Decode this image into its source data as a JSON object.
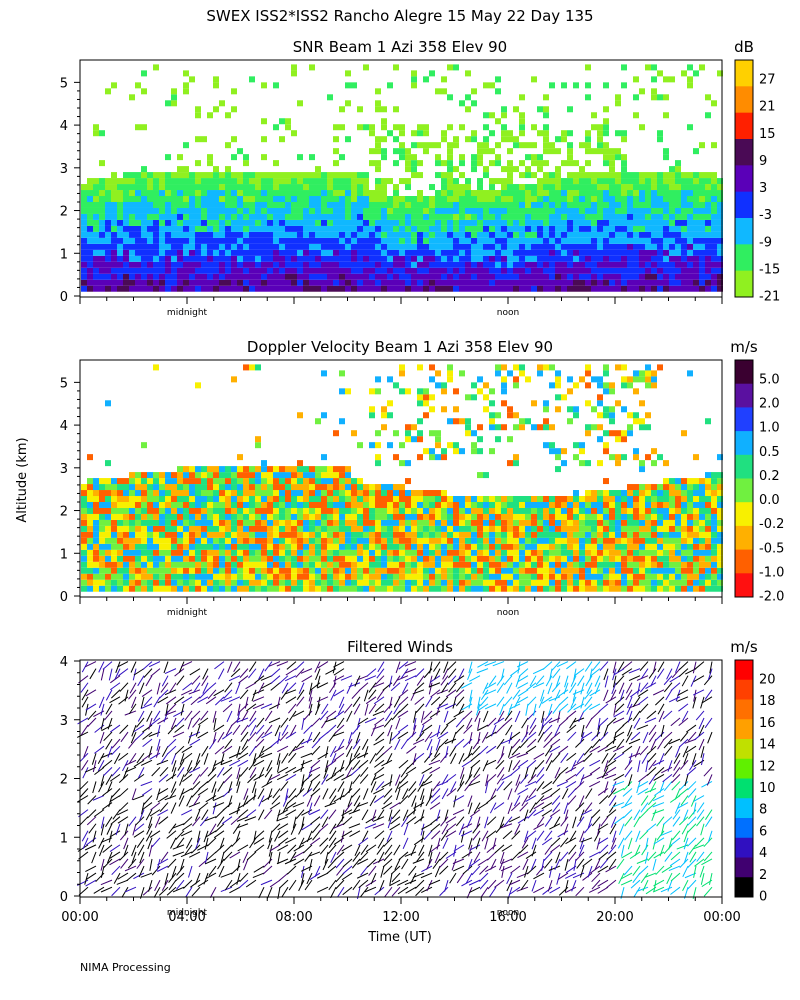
{
  "page": {
    "main_title": "SWEX ISS2*ISS2 Rancho Alegre  15 May 22 Day 135",
    "ylabel": "Altitude (km)",
    "xlabel": "Time (UT)",
    "footer": "NIMA Processing"
  },
  "chart_data": [
    {
      "id": "snr",
      "type": "heatmap",
      "title": "SNR Beam 1 Azi 358 Elev 90",
      "colorbar_unit": "dB",
      "colorbar_ticks": [
        "27",
        "21",
        "15",
        "9",
        "3",
        "-3",
        "-9",
        "-15",
        "-21"
      ],
      "colorbar_colors": [
        "#ffd000",
        "#ff8c00",
        "#ff2000",
        "#4a0a55",
        "#5a00b8",
        "#1030ff",
        "#10b8ff",
        "#30ee60",
        "#90f020"
      ],
      "yticks": [
        "0",
        "1",
        "2",
        "3",
        "4",
        "5"
      ],
      "ylim": [
        0,
        5.5
      ],
      "xlim_hours": [
        0,
        24
      ],
      "x_markers": [
        "midnight",
        "noon"
      ],
      "cell_colors": [
        "#90f020",
        "#30ee60",
        "#10b8ff",
        "#1030ff",
        "#5a00b8",
        "#4a0a55"
      ]
    },
    {
      "id": "doppler",
      "type": "heatmap",
      "title": "Doppler Velocity Beam 1 Azi 358 Elev 90",
      "colorbar_unit": "m/s",
      "colorbar_ticks": [
        "5.0",
        "2.0",
        "1.0",
        "0.5",
        "0.2",
        "0.0",
        "-0.2",
        "-0.5",
        "-1.0",
        "-2.0"
      ],
      "colorbar_colors": [
        "#3a0030",
        "#5a10a0",
        "#2040ff",
        "#10b0ff",
        "#20e080",
        "#70f040",
        "#f8f000",
        "#ffb000",
        "#ff6000",
        "#ff1010"
      ],
      "yticks": [
        "0",
        "1",
        "2",
        "3",
        "4",
        "5"
      ],
      "ylim": [
        0,
        5.5
      ],
      "xlim_hours": [
        0,
        24
      ],
      "x_markers": [
        "midnight",
        "noon"
      ],
      "cell_colors": [
        "#f8f000",
        "#ffb000",
        "#70f040",
        "#20e080",
        "#ff6000",
        "#10b0ff"
      ]
    },
    {
      "id": "winds",
      "type": "scatter",
      "title": "Filtered Winds",
      "colorbar_unit": "m/s",
      "colorbar_ticks": [
        "20",
        "18",
        "16",
        "14",
        "12",
        "10",
        "8",
        "6",
        "4",
        "2",
        "0"
      ],
      "colorbar_colors": [
        "#ff0000",
        "#ff4000",
        "#ff7000",
        "#ffa000",
        "#c0e000",
        "#60f000",
        "#00e070",
        "#00c0ff",
        "#0070ff",
        "#3010c0",
        "#400070",
        "#000000"
      ],
      "yticks": [
        "0",
        "1",
        "2",
        "3",
        "4"
      ],
      "ylim": [
        0,
        4
      ],
      "xlim_hours": [
        0,
        24
      ],
      "xticks": [
        "00:00",
        "04:00",
        "08:00",
        "12:00",
        "16:00",
        "20:00",
        "00:00"
      ],
      "x_markers": [
        "midnight",
        "noon"
      ]
    }
  ]
}
